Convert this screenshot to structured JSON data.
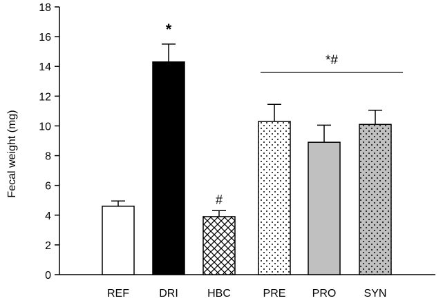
{
  "chart_data": {
    "type": "bar",
    "title": "",
    "xlabel": "",
    "ylabel": "Fecal weight (mg)",
    "ylim": [
      0,
      18
    ],
    "yticks": [
      0,
      2,
      4,
      6,
      8,
      10,
      12,
      14,
      16,
      18
    ],
    "grid": false,
    "categories": [
      "REF",
      "DRI",
      "HBC",
      "PRE",
      "PRO",
      "SYN"
    ],
    "values": [
      4.6,
      14.3,
      3.9,
      10.3,
      8.9,
      10.1
    ],
    "errors": [
      0.35,
      1.2,
      0.4,
      1.15,
      1.15,
      0.95
    ],
    "fill_patterns": [
      "white",
      "black",
      "crosshatch",
      "dots-on-white",
      "gray",
      "dots-on-gray"
    ],
    "annotations": {
      "DRI": "*",
      "HBC": "#",
      "group_PRE_to_SYN": "*#"
    },
    "colors": {
      "black": "#000000",
      "gray": "#c0c0c0",
      "white": "#ffffff"
    }
  }
}
